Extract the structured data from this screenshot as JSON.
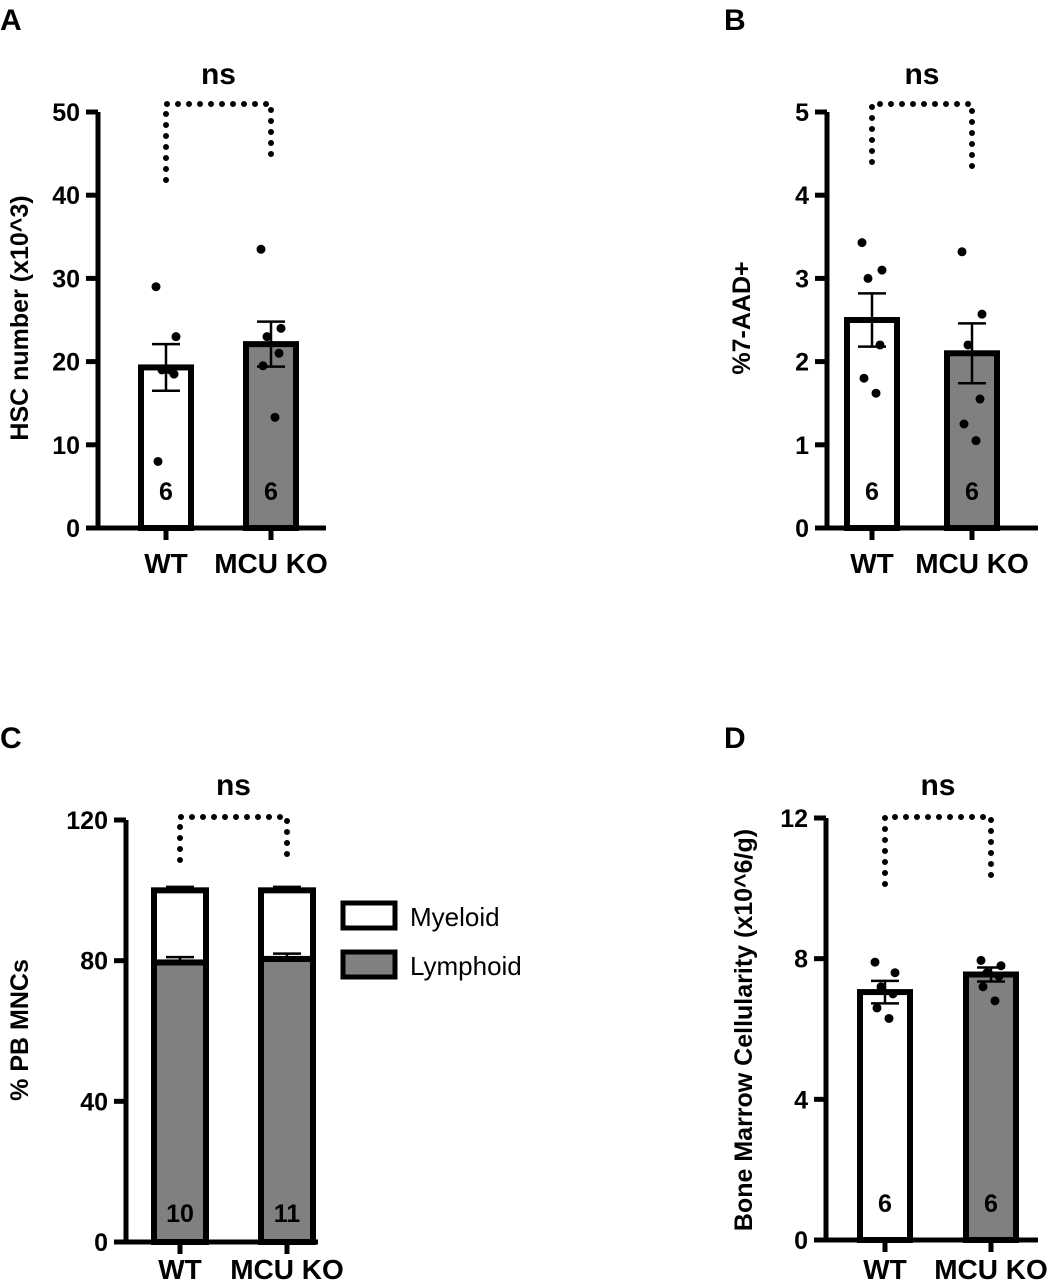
{
  "colors": {
    "wt_fill": "#ffffff",
    "ko_fill": "#808080",
    "stroke": "#000000"
  },
  "chart_data": [
    {
      "panel": "A",
      "type": "bar",
      "ylabel": "HSC number (x10^3)",
      "categories": [
        "WT",
        "MCU  KO"
      ],
      "ylim": [
        0,
        50
      ],
      "yticks": [
        0,
        10,
        20,
        30,
        40,
        50
      ],
      "values": [
        19.3,
        22.1
      ],
      "sem": [
        2.8,
        2.7
      ],
      "n_labels": [
        "6",
        "6"
      ],
      "points": [
        [
          29,
          23,
          19,
          18.5,
          8,
          19
        ],
        [
          33.5,
          24,
          23,
          21,
          19.5,
          13.3
        ]
      ],
      "significance": "ns"
    },
    {
      "panel": "B",
      "type": "bar",
      "ylabel": "%7-AAD+",
      "categories": [
        "WT",
        "MCU  KO"
      ],
      "ylim": [
        0,
        5
      ],
      "yticks": [
        0,
        1,
        2,
        3,
        4,
        5
      ],
      "values": [
        2.5,
        2.1
      ],
      "sem": [
        0.32,
        0.36
      ],
      "n_labels": [
        "6",
        "6"
      ],
      "points": [
        [
          3.43,
          3.1,
          3.0,
          2.2,
          1.8,
          1.62
        ],
        [
          3.32,
          2.57,
          2.2,
          1.55,
          1.25,
          1.05
        ]
      ],
      "significance": "ns"
    },
    {
      "panel": "C",
      "type": "stacked-bar",
      "ylabel": "% PB MNCs",
      "categories": [
        "WT",
        "MCU  KO"
      ],
      "ylim": [
        0,
        120
      ],
      "yticks": [
        0,
        40,
        80,
        120
      ],
      "series": [
        {
          "name": "Lymphoid",
          "values": [
            79.5,
            80.5
          ],
          "sem": [
            1.5,
            1.5
          ]
        },
        {
          "name": "Myeloid",
          "values": [
            20.5,
            19.5
          ],
          "sem": [
            1.0,
            1.0
          ]
        }
      ],
      "legend": [
        "Myeloid",
        "Lymphoid"
      ],
      "n_labels": [
        "10",
        "11"
      ],
      "significance": "ns"
    },
    {
      "panel": "D",
      "type": "bar",
      "ylabel": "Bone Marrow Cellularity (x10^6/g)",
      "categories": [
        "WT",
        "MCU  KO"
      ],
      "ylim": [
        0,
        12
      ],
      "yticks": [
        0,
        4,
        8,
        12
      ],
      "values": [
        7.05,
        7.55
      ],
      "sem": [
        0.32,
        0.2
      ],
      "n_labels": [
        "6",
        "6"
      ],
      "points": [
        [
          7.9,
          7.6,
          7.2,
          7.0,
          6.6,
          6.3
        ],
        [
          7.95,
          7.8,
          7.6,
          7.5,
          7.2,
          6.8
        ]
      ],
      "significance": "ns"
    }
  ]
}
